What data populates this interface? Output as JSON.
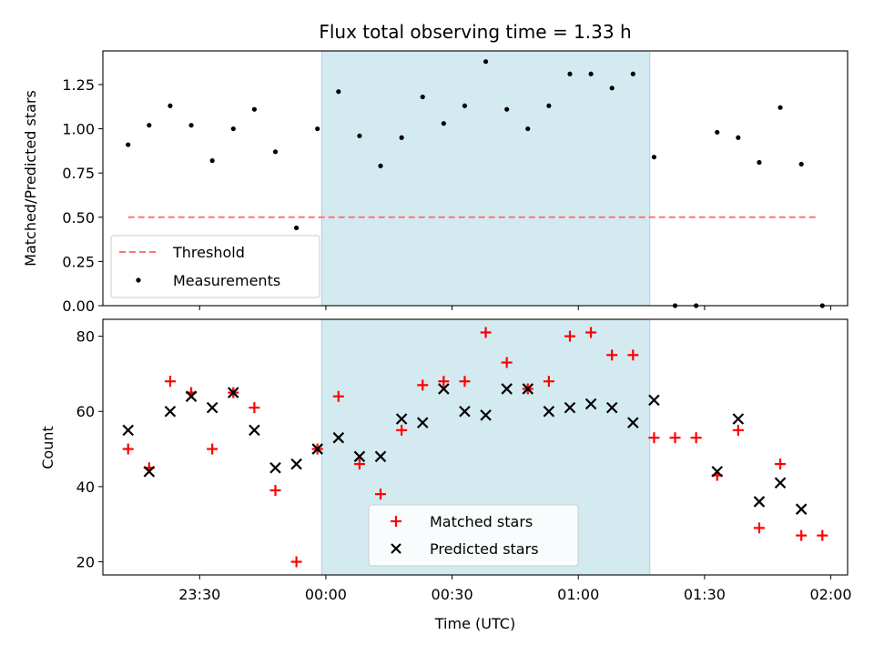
{
  "chart_data": [
    {
      "type": "scatter",
      "title": "Flux total observing time = 1.33 h",
      "ylabel": "Matched/Predicted stars",
      "xlabel": "",
      "ylim": [
        0,
        1.44
      ],
      "yticks": [
        "0.00",
        "0.25",
        "0.50",
        "0.75",
        "1.00",
        "1.25"
      ],
      "xtick_labels_shown": false,
      "highlight": {
        "start": "23:59",
        "end": "01:17",
        "color": "#d4eaf1"
      },
      "threshold": {
        "name": "Threshold",
        "value": 0.5,
        "x_start": "23:13",
        "x_end": "01:57",
        "color": "#ff7373"
      },
      "legend": {
        "position": "lower-left",
        "entries": [
          "Threshold",
          "Measurements"
        ]
      },
      "series": [
        {
          "name": "Measurements",
          "marker": "dot",
          "color": "#000000",
          "x": [
            "23:13",
            "23:18",
            "23:23",
            "23:28",
            "23:33",
            "23:38",
            "23:43",
            "23:48",
            "23:53",
            "23:58",
            "00:03",
            "00:08",
            "00:13",
            "00:18",
            "00:23",
            "00:28",
            "00:33",
            "00:38",
            "00:43",
            "00:48",
            "00:53",
            "00:58",
            "01:03",
            "01:08",
            "01:13",
            "01:18",
            "01:23",
            "01:28",
            "01:33",
            "01:38",
            "01:43",
            "01:48",
            "01:53",
            "01:58"
          ],
          "y": [
            0.91,
            1.02,
            1.13,
            1.02,
            0.82,
            1.0,
            1.11,
            0.87,
            0.44,
            1.0,
            1.21,
            0.96,
            0.79,
            0.95,
            1.18,
            1.03,
            1.13,
            1.38,
            1.11,
            1.0,
            1.13,
            1.31,
            1.31,
            1.23,
            1.31,
            0.84,
            0.0,
            0.0,
            0.98,
            0.95,
            0.81,
            1.12,
            0.8,
            0.0
          ]
        }
      ]
    },
    {
      "type": "scatter",
      "title": "",
      "xlabel": "Time (UTC)",
      "ylabel": "Count",
      "ylim": [
        16.5,
        84.5
      ],
      "yticks": [
        "20",
        "40",
        "60",
        "80"
      ],
      "xlim": [
        "23:07",
        "02:04"
      ],
      "xticks": [
        "23:30",
        "00:00",
        "00:30",
        "01:00",
        "01:30",
        "02:00"
      ],
      "highlight": {
        "start": "23:59",
        "end": "01:17",
        "color": "#d4eaf1"
      },
      "legend": {
        "position": "lower-center",
        "entries": [
          "Matched stars",
          "Predicted stars"
        ]
      },
      "series": [
        {
          "name": "Matched stars",
          "marker": "plus",
          "color": "#ff0000",
          "x": [
            "23:13",
            "23:18",
            "23:23",
            "23:28",
            "23:33",
            "23:38",
            "23:43",
            "23:48",
            "23:53",
            "23:58",
            "00:03",
            "00:08",
            "00:13",
            "00:18",
            "00:23",
            "00:28",
            "00:33",
            "00:38",
            "00:43",
            "00:48",
            "00:53",
            "00:58",
            "01:03",
            "01:08",
            "01:13",
            "01:18",
            "01:23",
            "01:28",
            "01:33",
            "01:38",
            "01:43",
            "01:48",
            "01:53",
            "01:58"
          ],
          "y": [
            50,
            45,
            68,
            65,
            50,
            65,
            61,
            39,
            20,
            50,
            64,
            46,
            38,
            55,
            67,
            68,
            68,
            81,
            73,
            66,
            68,
            80,
            81,
            75,
            75,
            53,
            53,
            53,
            43,
            55,
            29,
            46,
            27,
            27
          ]
        },
        {
          "name": "Predicted stars",
          "marker": "x",
          "color": "#000000",
          "x": [
            "23:13",
            "23:18",
            "23:23",
            "23:28",
            "23:33",
            "23:38",
            "23:43",
            "23:48",
            "23:53",
            "23:58",
            "00:03",
            "00:08",
            "00:13",
            "00:18",
            "00:23",
            "00:28",
            "00:33",
            "00:38",
            "00:43",
            "00:48",
            "00:53",
            "00:58",
            "01:03",
            "01:08",
            "01:13",
            "01:18",
            "01:33",
            "01:38",
            "01:43",
            "01:48",
            "01:53"
          ],
          "y": [
            55,
            44,
            60,
            64,
            61,
            65,
            55,
            45,
            46,
            50,
            53,
            48,
            48,
            58,
            57,
            66,
            60,
            59,
            66,
            66,
            60,
            61,
            62,
            61,
            57,
            63,
            44,
            58,
            36,
            41,
            34
          ]
        }
      ]
    }
  ]
}
